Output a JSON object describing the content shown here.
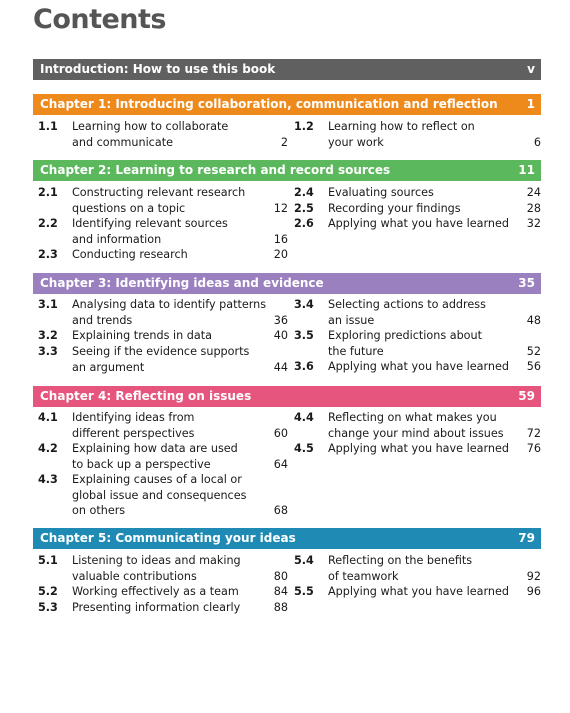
{
  "page_title": "Contents",
  "intro": {
    "label": "Introduction: How to use this book",
    "page": "v",
    "color": "#606060"
  },
  "chapters": [
    {
      "label": "Chapter 1: Introducing collaboration, communication and reflection",
      "page": "1",
      "color": "#EE8A1C",
      "entries": [
        {
          "no": "1.1",
          "text": "Learning how to collaborate\nand communicate",
          "page": "2"
        },
        {
          "no": "1.2",
          "text": "Learning how to reflect on\nyour work",
          "page": "6"
        }
      ]
    },
    {
      "label": "Chapter 2: Learning to research and record sources",
      "page": "11",
      "color": "#5CB85C",
      "entries": [
        {
          "no": "2.1",
          "text": "Constructing relevant research\nquestions on a topic",
          "page": "12"
        },
        {
          "no": "2.2",
          "text": "Identifying relevant sources\nand information",
          "page": "16"
        },
        {
          "no": "2.3",
          "text": "Conducting research",
          "page": "20"
        },
        {
          "no": "2.4",
          "text": "Evaluating sources",
          "page": "24"
        },
        {
          "no": "2.5",
          "text": "Recording your findings",
          "page": "28"
        },
        {
          "no": "2.6",
          "text": "Applying what you have learned",
          "page": "32"
        }
      ]
    },
    {
      "label": "Chapter 3: Identifying ideas and evidence",
      "page": "35",
      "color": "#9B80C0",
      "entries": [
        {
          "no": "3.1",
          "text": "Analysing data to identify patterns\nand trends",
          "page": "36"
        },
        {
          "no": "3.2",
          "text": "Explaining trends in data",
          "page": "40"
        },
        {
          "no": "3.3",
          "text": "Seeing if the evidence supports\nan argument",
          "page": "44"
        },
        {
          "no": "3.4",
          "text": "Selecting actions to address\nan issue",
          "page": "48"
        },
        {
          "no": "3.5",
          "text": "Exploring predictions about\nthe future",
          "page": "52"
        },
        {
          "no": "3.6",
          "text": "Applying what you have learned",
          "page": "56"
        }
      ]
    },
    {
      "label": "Chapter 4: Reflecting on issues",
      "page": "59",
      "color": "#E5557E",
      "entries": [
        {
          "no": "4.1",
          "text": "Identifying ideas from\ndifferent perspectives",
          "page": "60"
        },
        {
          "no": "4.2",
          "text": "Explaining how data are used\nto back up a perspective",
          "page": "64"
        },
        {
          "no": "4.3",
          "text": "Explaining causes of a local or\nglobal issue and consequences\non others",
          "page": "68"
        },
        {
          "no": "4.4",
          "text": "Reflecting on what makes you\nchange your mind about issues",
          "page": "72"
        },
        {
          "no": "4.5",
          "text": "Applying what you have learned",
          "page": "76"
        }
      ]
    },
    {
      "label": "Chapter 5: Communicating your ideas",
      "page": "79",
      "color": "#1F8BB5",
      "entries": [
        {
          "no": "5.1",
          "text": "Listening to ideas and making\nvaluable contributions",
          "page": "80"
        },
        {
          "no": "5.2",
          "text": "Working effectively as a team",
          "page": "84"
        },
        {
          "no": "5.3",
          "text": "Presenting information clearly",
          "page": "88"
        },
        {
          "no": "5.4",
          "text": "Reflecting on the benefits\nof teamwork",
          "page": "92"
        },
        {
          "no": "5.5",
          "text": "Applying what you have learned",
          "page": "96"
        }
      ]
    }
  ]
}
